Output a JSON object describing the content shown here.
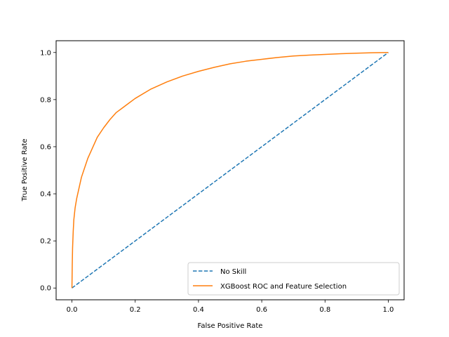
{
  "chart_data": {
    "type": "line",
    "title": "",
    "xlabel": "False Positive Rate",
    "ylabel": "True Positive Rate",
    "xlim": [
      -0.05,
      1.05
    ],
    "ylim": [
      -0.05,
      1.05
    ],
    "xticks": [
      0.0,
      0.2,
      0.4,
      0.6,
      0.8,
      1.0
    ],
    "yticks": [
      0.0,
      0.2,
      0.4,
      0.6,
      0.8,
      1.0
    ],
    "xtick_labels": [
      "0.0",
      "0.2",
      "0.4",
      "0.6",
      "0.8",
      "1.0"
    ],
    "ytick_labels": [
      "0.0",
      "0.2",
      "0.4",
      "0.6",
      "0.8",
      "1.0"
    ],
    "grid": false,
    "legend_position": "bottom-right",
    "series": [
      {
        "name": "No Skill",
        "style": "dashed",
        "color": "#1f77b4",
        "x": [
          0.0,
          1.0
        ],
        "y": [
          0.0,
          1.0
        ]
      },
      {
        "name": "XGBoost ROC and Feature Selection",
        "style": "solid",
        "color": "#ff7f0e",
        "x": [
          0.0,
          0.001,
          0.002,
          0.004,
          0.006,
          0.01,
          0.015,
          0.02,
          0.03,
          0.04,
          0.05,
          0.06,
          0.08,
          0.1,
          0.12,
          0.14,
          0.16,
          0.18,
          0.2,
          0.25,
          0.3,
          0.35,
          0.4,
          0.45,
          0.5,
          0.55,
          0.6,
          0.65,
          0.7,
          0.75,
          0.8,
          0.85,
          0.9,
          0.95,
          1.0
        ],
        "y": [
          0.0,
          0.1,
          0.17,
          0.24,
          0.29,
          0.34,
          0.38,
          0.41,
          0.47,
          0.51,
          0.55,
          0.58,
          0.64,
          0.68,
          0.715,
          0.745,
          0.765,
          0.785,
          0.805,
          0.845,
          0.875,
          0.9,
          0.92,
          0.937,
          0.952,
          0.963,
          0.971,
          0.979,
          0.985,
          0.989,
          0.992,
          0.995,
          0.997,
          0.999,
          1.0
        ]
      }
    ]
  }
}
